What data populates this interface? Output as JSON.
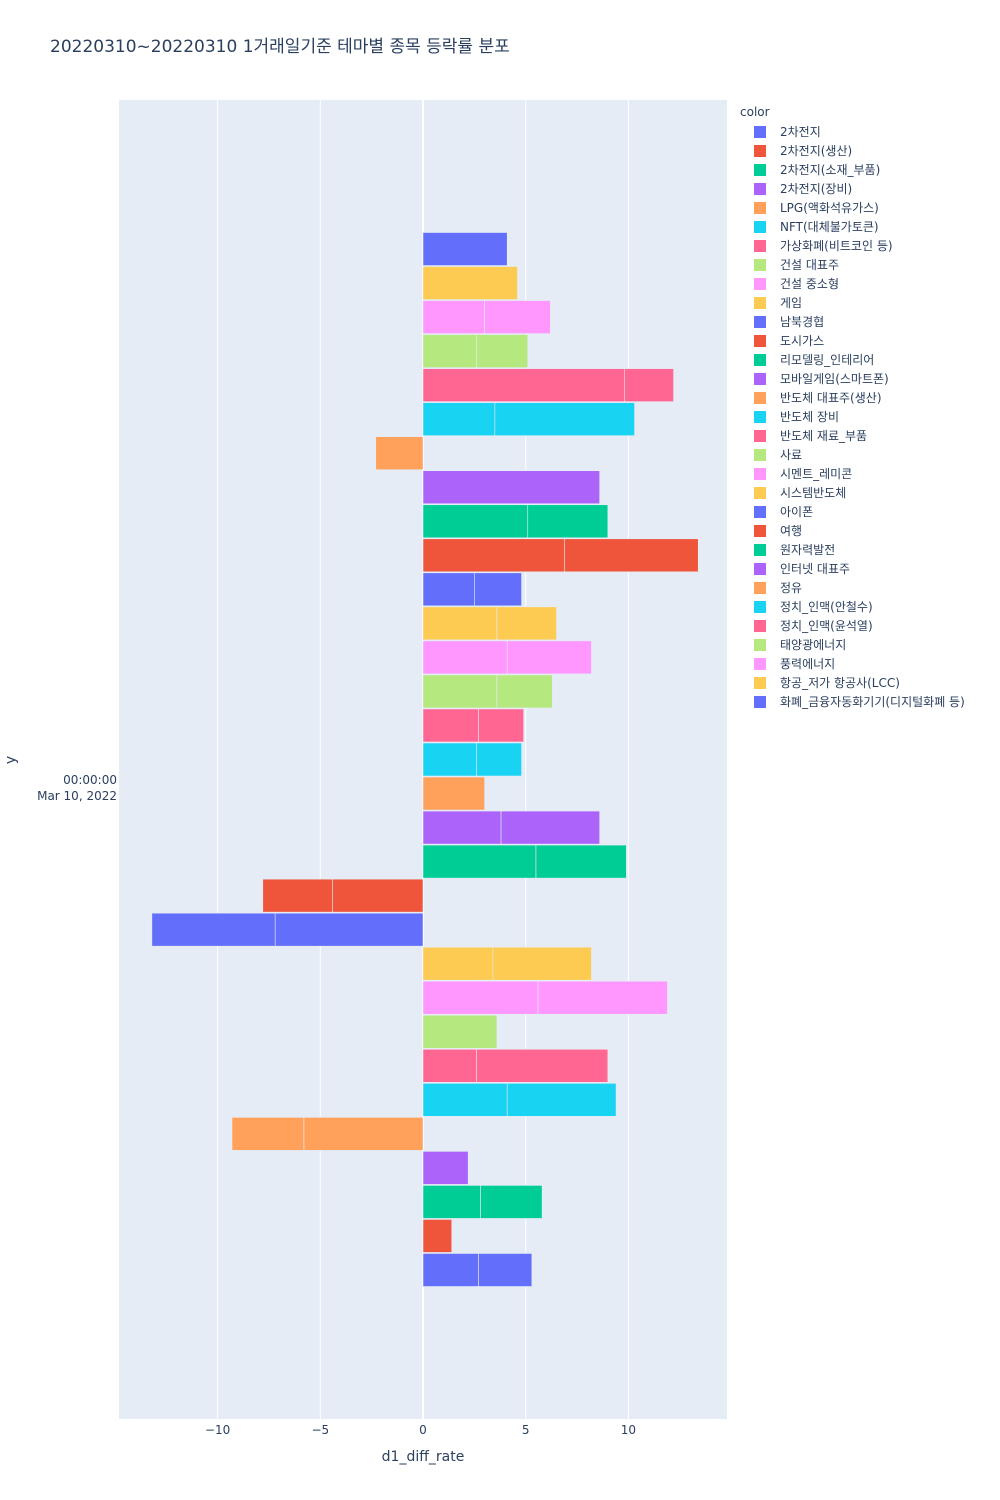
{
  "title": "20220310~20220310 1거래일기준 테마별 종목 등락률 분포",
  "chart_data": {
    "type": "bar",
    "orientation": "horizontal",
    "title": "20220310~20220310 1거래일기준 테마별 종목 등락률 분포",
    "xlabel": "d1_diff_rate",
    "ylabel": "y",
    "y_tick_label": [
      "00:00:00",
      "Mar 10, 2022"
    ],
    "xlim": [
      -14.8,
      14.8
    ],
    "x_ticks": [
      -10,
      -5,
      0,
      5,
      10
    ],
    "x_tick_labels": [
      "−10",
      "−5",
      "0",
      "5",
      "10"
    ],
    "grid": true,
    "legend_title": "color",
    "legend_position": "right",
    "series": [
      {
        "name": "2차전지",
        "color": "#636efa",
        "values": [
          4.1
        ]
      },
      {
        "name": "2차전지(생산)",
        "color": "#EF553B",
        "values": []
      },
      {
        "name": "2차전지(소재_부품)",
        "color": "#00cc96",
        "values": []
      },
      {
        "name": "2차전지(장비)",
        "color": "#ab63fa",
        "values": []
      },
      {
        "name": "LPG(액화석유가스)",
        "color": "#FFA15A",
        "values": []
      },
      {
        "name": "NFT(대체불가토큰)",
        "color": "#19d3f3",
        "values": []
      },
      {
        "name": "가상화폐(비트코인 등)",
        "color": "#FF6692",
        "values": []
      },
      {
        "name": "건설 대표주",
        "color": "#B6E880",
        "values": []
      },
      {
        "name": "건설 중소형",
        "color": "#FF97FF",
        "values": []
      },
      {
        "name": "게임",
        "color": "#FECB52",
        "values": [
          4.6
        ]
      },
      {
        "name": "남북경협",
        "color": "#636efa",
        "values": [
          2.5,
          2.3
        ]
      },
      {
        "name": "도시가스",
        "color": "#EF553B",
        "values": [
          6.9,
          6.5
        ]
      },
      {
        "name": "리모델링_인테리어",
        "color": "#00cc96",
        "values": [
          5.1,
          3.9
        ]
      },
      {
        "name": "모바일게임(스마트폰)",
        "color": "#ab63fa",
        "values": [
          8.6
        ]
      },
      {
        "name": "반도체 대표주(생산)",
        "color": "#FFA15A",
        "values": [
          -2.3
        ]
      },
      {
        "name": "반도체 장비",
        "color": "#19d3f3",
        "values": [
          3.5,
          6.8
        ]
      },
      {
        "name": "반도체 재료_부품",
        "color": "#FF6692",
        "values": [
          9.8,
          2.4
        ]
      },
      {
        "name": "사료",
        "color": "#B6E880",
        "values": [
          2.6,
          2.5
        ]
      },
      {
        "name": "시멘트_레미콘",
        "color": "#FF97FF",
        "values": [
          3.0,
          3.2
        ]
      },
      {
        "name": "시스템반도체",
        "color": "#FECB52",
        "values": [
          3.6,
          2.9
        ]
      },
      {
        "name": "아이폰",
        "color": "#636efa",
        "values": []
      },
      {
        "name": "여행",
        "color": "#EF553B",
        "values": []
      },
      {
        "name": "원자력발전",
        "color": "#00cc96",
        "values": []
      },
      {
        "name": "인터넷 대표주",
        "color": "#ab63fa",
        "values": []
      },
      {
        "name": "정유",
        "color": "#FFA15A",
        "values": []
      },
      {
        "name": "정치_인맥(안철수)",
        "color": "#19d3f3",
        "values": []
      },
      {
        "name": "정치_인맥(윤석열)",
        "color": "#FF6692",
        "values": []
      },
      {
        "name": "태양광에너지",
        "color": "#B6E880",
        "values": []
      },
      {
        "name": "풍력에너지",
        "color": "#FF97FF",
        "values": []
      },
      {
        "name": "항공_저가 항공사(LCC)",
        "color": "#FECB52",
        "values": []
      },
      {
        "name": "화폐_금융자동화기기(디지털화폐 등)",
        "color": "#636efa",
        "values": []
      }
    ],
    "bars_top_to_bottom": [
      {
        "series": "2차전지",
        "stack": [
          4.1
        ]
      },
      {
        "series": "게임",
        "stack": [
          4.6
        ]
      },
      {
        "series": "건설 중소형",
        "stack": [
          3.0,
          3.2
        ]
      },
      {
        "series": "건설 대표주",
        "stack": [
          2.6,
          2.5
        ]
      },
      {
        "series": "가상화폐(비트코인 등)",
        "stack": [
          9.8,
          2.4
        ]
      },
      {
        "series": "NFT(대체불가토큰)",
        "stack": [
          3.5,
          6.8
        ]
      },
      {
        "series": "LPG(액화석유가스)",
        "stack": [
          -2.3
        ]
      },
      {
        "series": "2차전지(장비)",
        "stack": [
          8.6
        ]
      },
      {
        "series": "2차전지(소재_부품)",
        "stack": [
          5.1,
          3.9
        ]
      },
      {
        "series": "2차전지(생산)",
        "stack": [
          6.9,
          6.5
        ]
      },
      {
        "series": "남북경협",
        "stack": [
          2.5,
          2.3
        ]
      },
      {
        "series": "게임",
        "stack": [
          3.6,
          2.9
        ]
      },
      {
        "series": "건설 중소형",
        "stack": [
          4.1,
          4.1
        ]
      },
      {
        "series": "건설 대표주",
        "stack": [
          3.6,
          2.7
        ]
      },
      {
        "series": "가상화폐(비트코인 등)",
        "stack": [
          2.7,
          2.2
        ]
      },
      {
        "series": "NFT(대체불가토큰)",
        "stack": [
          2.6,
          2.2
        ]
      },
      {
        "series": "LPG(액화석유가스)",
        "stack": [
          3.0
        ]
      },
      {
        "series": "2차전지(장비)",
        "stack": [
          3.8,
          4.8
        ]
      },
      {
        "series": "2차전지(소재_부품)",
        "stack": [
          5.5,
          4.4
        ]
      },
      {
        "series": "2차전지(생산)",
        "stack": [
          -4.4,
          -3.4
        ]
      },
      {
        "series": "2차전지",
        "stack": [
          -7.2,
          -6.0
        ]
      },
      {
        "series": "게임",
        "stack": [
          3.4,
          4.8
        ]
      },
      {
        "series": "건설 중소형",
        "stack": [
          5.6,
          6.3
        ]
      },
      {
        "series": "건설 대표주",
        "stack": [
          3.6
        ]
      },
      {
        "series": "가상화폐(비트코인 등)",
        "stack": [
          2.6,
          6.4
        ]
      },
      {
        "series": "NFT(대체불가토큰)",
        "stack": [
          4.1,
          5.3
        ]
      },
      {
        "series": "LPG(액화석유가스)",
        "stack": [
          -5.8,
          -3.5
        ]
      },
      {
        "series": "2차전지(장비)",
        "stack": [
          2.2
        ]
      },
      {
        "series": "2차전지(소재_부품)",
        "stack": [
          2.8,
          3.0
        ]
      },
      {
        "series": "2차전지(생산)",
        "stack": [
          1.4
        ]
      },
      {
        "series": "2차전지",
        "stack": [
          2.7,
          2.6
        ]
      }
    ]
  }
}
